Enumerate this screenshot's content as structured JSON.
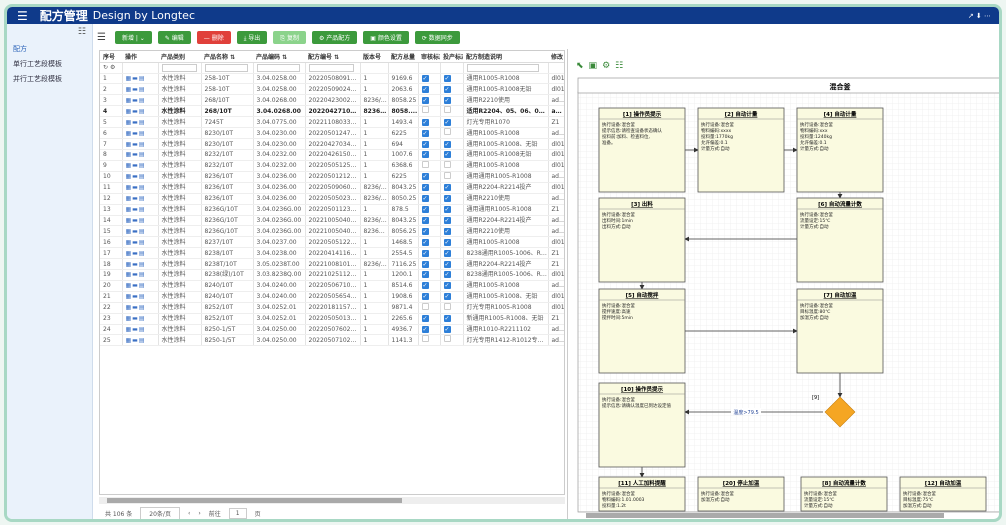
{
  "header": {
    "title": "配方管理",
    "subtitle": "Design by Longtec",
    "menu_icon": "hamburger-icon",
    "right": "↗ ⬇ ⋯"
  },
  "sidebar": {
    "items": [
      {
        "label": "配方"
      },
      {
        "label": "单行工艺段模板"
      },
      {
        "label": "并行工艺段模板"
      }
    ]
  },
  "toolbar": {
    "buttons": [
      {
        "label": "新增 | ⌄",
        "color": "#3c9a3c"
      },
      {
        "label": "✎ 编辑",
        "color": "#3c9a3c"
      },
      {
        "label": "— 删除",
        "color": "#e0403a"
      },
      {
        "label": "⤓ 导出",
        "color": "#3c9a3c"
      },
      {
        "label": "⎘ 复制",
        "color": "#8bd38b"
      },
      {
        "label": "⚙ 产品配方",
        "color": "#3c9a3c"
      },
      {
        "label": "▣ 颜色设置",
        "color": "#3c9a3c"
      },
      {
        "label": "⟳ 数据同步",
        "color": "#3c9a3c"
      }
    ]
  },
  "table": {
    "columns": [
      "序号",
      "操作",
      "产品类别",
      "产品名称 ⇅",
      "产品编码 ⇅",
      "配方编号 ⇅",
      "版本号",
      "配方总量",
      "审核标志",
      "投产标志",
      "配方制造说明",
      "修改"
    ],
    "rows": [
      [
        "1",
        "水性涂料",
        "258-10T",
        "3.04.0258.00",
        "20220508091614...",
        "1",
        "9169.6",
        true,
        true,
        "通用R1005-R1008",
        "dl01"
      ],
      [
        "2",
        "水性涂料",
        "258-10T",
        "3.04.0258.00",
        "20220509024011...",
        "1",
        "2063.6",
        true,
        true,
        "通用R1005-R1008无铅",
        "dl01"
      ],
      [
        "3",
        "水性涂料",
        "268/10T",
        "3.04.0268.00",
        "20220423002974...",
        "8236/1...",
        "8058.25",
        true,
        true,
        "通用R2210使用",
        "admin"
      ],
      [
        "4",
        "水性涂料",
        "268/10T",
        "3.04.0268.00",
        "20220427103062...",
        "8236/...",
        "8058....",
        false,
        false,
        "适用R2204、05、06、07、1...",
        "admin"
      ],
      [
        "5",
        "水性涂料",
        "7245T",
        "3.04.0775.00",
        "20221108033092...",
        "1",
        "1493.4",
        true,
        true,
        "灯光专用R1070",
        "Z1"
      ],
      [
        "6",
        "水性涂料",
        "8230/10T",
        "3.04.0230.00",
        "20220501247016...",
        "1",
        "6225",
        true,
        false,
        "通用R1005-R1008",
        "admin"
      ],
      [
        "7",
        "水性涂料",
        "8230/10T",
        "3.04.0230.00",
        "20220427034776...",
        "1",
        "694",
        true,
        true,
        "通用R1005-R1008、无铅",
        "dl01"
      ],
      [
        "8",
        "水性涂料",
        "8232/10T",
        "3.04.0232.00",
        "20220426150275...",
        "1",
        "1007.6",
        true,
        true,
        "通用R1005-R1008无铅",
        "dl01"
      ],
      [
        "9",
        "水性涂料",
        "8232/10T",
        "3.04.0232.00",
        "20220505125220...",
        "1",
        "6368.6",
        false,
        false,
        "通用R1005-R1008",
        "dl01"
      ],
      [
        "10",
        "水性涂料",
        "8236/10T",
        "3.04.0236.00",
        "20220501212740...",
        "1",
        "6225",
        true,
        false,
        "通用通用R1005-R1008",
        "admin"
      ],
      [
        "11",
        "水性涂料",
        "8236/10T",
        "3.04.0236.00",
        "20220509060424...",
        "8236/1...",
        "8043.25",
        true,
        true,
        "通用R2204-R2214投产",
        "dl01"
      ],
      [
        "12",
        "水性涂料",
        "8236/10T",
        "3.04.0236.00",
        "20220505023414...",
        "8236/1...",
        "8050.25",
        true,
        true,
        "通用R2210使用",
        "admin"
      ],
      [
        "13",
        "水性涂料",
        "8236G/10T",
        "3.04.0236G.00",
        "20220501123127...",
        "1",
        "878.5",
        true,
        true,
        "通用通用R1005-R1008",
        "Z1"
      ],
      [
        "14",
        "水性涂料",
        "8236G/10T",
        "3.04.0236G.00",
        "20221005040223...",
        "8236/1...",
        "8043.25",
        true,
        true,
        "通用R2204-R2214投产",
        "admin"
      ],
      [
        "15",
        "水性涂料",
        "8236G/10T",
        "3.04.0236G.00",
        "20221005040520...",
        "8236G...",
        "8056.25",
        true,
        true,
        "通用R2210使用",
        "admin"
      ],
      [
        "16",
        "水性涂料",
        "8237/10T",
        "3.04.0237.00",
        "20220505122691...",
        "1",
        "1468.5",
        true,
        true,
        "通用R1005-R1008",
        "dl01"
      ],
      [
        "17",
        "水性涂料",
        "8238/10T",
        "3.04.0238.00",
        "20220414116086...",
        "1",
        "2554.5",
        true,
        true,
        "8238通用R1005-1006、R822...",
        "Z1"
      ],
      [
        "18",
        "水性涂料",
        "8238T/10T",
        "3.05.0238T.00",
        "20221008101771...",
        "8236/1...",
        "7116.25",
        true,
        true,
        "通用R2204-R2214投产",
        "Z1"
      ],
      [
        "19",
        "水性涂料",
        "8238(绿)/10T",
        "3.03.8238Q.00",
        "20221025112604...",
        "1",
        "1200.1",
        true,
        true,
        "8238通用R1005-1006、R822...",
        "dl01"
      ],
      [
        "20",
        "水性涂料",
        "8240/10T",
        "3.04.0240.00",
        "20220506710091...",
        "1",
        "8514.6",
        true,
        true,
        "通用R1005-R1008",
        "admin"
      ],
      [
        "21",
        "水性涂料",
        "8240/10T",
        "3.04.0240.00",
        "20220505654937...",
        "1",
        "1908.6",
        true,
        true,
        "通用R1005-R1008、无铅",
        "dl01"
      ],
      [
        "22",
        "水性涂料",
        "8252/10T",
        "3.04.0252.01",
        "20220181157354...",
        "1",
        "9871.4",
        false,
        false,
        "灯光专用R1005-R1008",
        "dl01"
      ],
      [
        "23",
        "水性涂料",
        "8252/10T",
        "3.04.0252.01",
        "20220505013440...",
        "1",
        "2265.6",
        true,
        true,
        "新通用R1005-R1008、无铅",
        "Z1"
      ],
      [
        "24",
        "水性涂料",
        "8250-1/5T",
        "3.04.0250.00",
        "20220507602091...",
        "1",
        "4936.7",
        true,
        true,
        "通用R1010-R2211102",
        "admin"
      ],
      [
        "25",
        "水性涂料",
        "8250-1/5T",
        "3.04.0250.00",
        "20220507102481...",
        "1",
        "1141.3",
        false,
        false,
        "灯光专用R1412-R1012专用...",
        "admin"
      ]
    ]
  },
  "pagination": {
    "total": "共 106 条",
    "page_size": "20条/页",
    "prev": "‹",
    "next": "›",
    "goto": "前往",
    "page": "1",
    "unit": "页"
  },
  "diagram": {
    "toolbar_icons": [
      "back-icon",
      "save-icon",
      "settings-icon",
      "layout-icon"
    ],
    "title": "混合釜",
    "nodes": [
      {
        "id": "n1",
        "title": "[1] 操作员提示",
        "lines": [
          "执行设备:混合釜",
          "提示信息:请检查设备状态确认",
          "投料前:加料、检查料位,",
          "准备。"
        ]
      },
      {
        "id": "n2",
        "title": "[2] 自动计量",
        "lines": [
          "执行设备:混合釜",
          "物料编码:xxxx",
          "投料量:1770kg",
          "允许偏差:0.1",
          "计量方式:自动"
        ]
      },
      {
        "id": "n4",
        "title": "[4] 自动计量",
        "lines": [
          "执行设备:混合釜",
          "物料编码:xxx",
          "投料量:1240kg",
          "允许偏差:0.1",
          "计量方式:自动"
        ]
      },
      {
        "id": "n3",
        "title": "[3] 出料",
        "lines": [
          "执行设备:混合釜",
          "出料时间:1min",
          "出料方式:自动"
        ]
      },
      {
        "id": "n6",
        "title": "[6] 自动流量计数",
        "lines": [
          "执行设备:混合釜",
          "流量设定:15℃",
          "计量方式:自动"
        ]
      },
      {
        "id": "n5",
        "title": "[5] 自动搅拌",
        "lines": [
          "执行设备:混合釜",
          "搅拌速度:高速",
          "搅拌时间:5min"
        ]
      },
      {
        "id": "n7",
        "title": "[7] 自动加温",
        "lines": [
          "执行设备:混合釜",
          "目标温度:80℃",
          "加温方式:自动"
        ]
      },
      {
        "id": "n10",
        "title": "[10] 操作员提示",
        "lines": [
          "执行设备:混合釜",
          "提示信息:请确认温度已到达设定值"
        ]
      },
      {
        "id": "n11",
        "title": "[11] 人工加料提醒",
        "lines": [
          "执行设备:混合釜",
          "物料编码:1.01.0003",
          "投料量:1.2t"
        ]
      },
      {
        "id": "n20",
        "title": "[20] 停止加温",
        "lines": [
          "执行设备:混合釜",
          "加温方式:自动"
        ]
      },
      {
        "id": "n8",
        "title": "[8] 自动流量计数",
        "lines": [
          "执行设备:混合釜",
          "流量设定:15℃",
          "计量方式:自动"
        ]
      },
      {
        "id": "n12",
        "title": "[12] 自动加温",
        "lines": [
          "执行设备:混合釜",
          "目标温度:75℃",
          "加温方式:自动"
        ]
      }
    ],
    "decision": {
      "title": "[9]",
      "color": "#f5a623",
      "edge_label": "温度>79.5"
    },
    "node_fill": "#fafae0"
  }
}
